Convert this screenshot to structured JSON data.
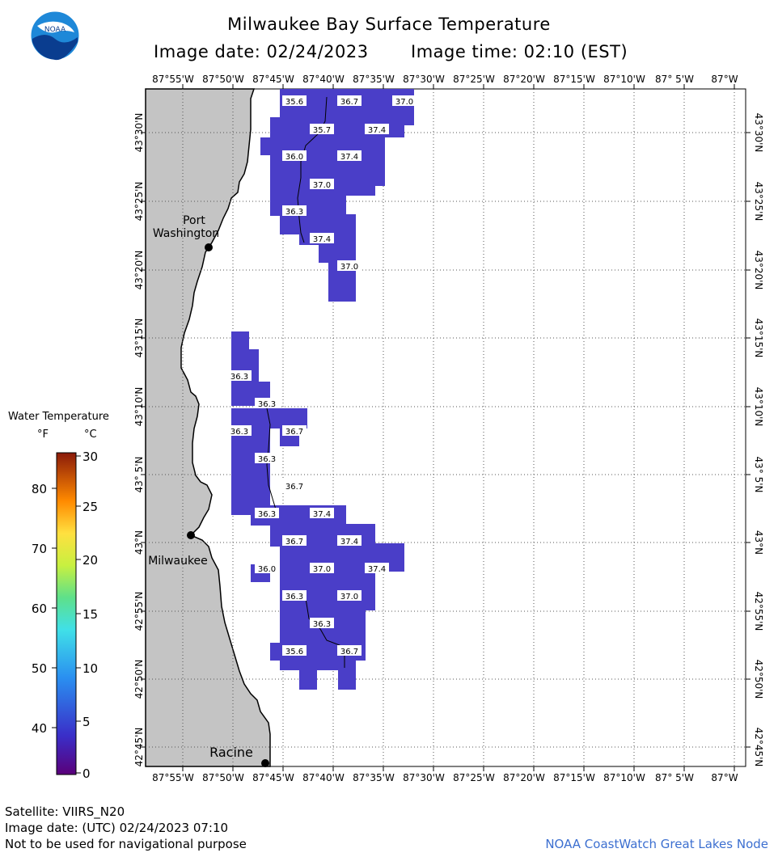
{
  "header": {
    "title": "Milwaukee Bay Surface Temperature",
    "image_date": "Image date: 02/24/2023",
    "image_time": "Image time: 02:10 (EST)",
    "logo_text": "NOAA"
  },
  "map": {
    "lon_labels": [
      "87°55'W",
      "87°50'W",
      "87°45'W",
      "87°40'W",
      "87°35'W",
      "87°30'W",
      "87°25'W",
      "87°20'W",
      "87°15'W",
      "87°10'W",
      "87° 5'W",
      "87°W"
    ],
    "lat_labels": [
      "43°30'N",
      "43°25'N",
      "43°20'N",
      "43°15'N",
      "43°10'N",
      "43° 5'N",
      "43°N",
      "42°55'N",
      "42°50'N",
      "42°45'N"
    ],
    "cities": [
      {
        "name": "Port",
        "name2": "Washington"
      },
      {
        "name": "Milwaukee"
      },
      {
        "name": "Racine"
      }
    ],
    "temperature_labels": [
      "35.6",
      "36.7",
      "37.0",
      "35.7",
      "37.4",
      "36.0",
      "37.4",
      "37.0",
      "36.3",
      "37.4",
      "37.0",
      "36.3",
      "36.3",
      "36.3",
      "36.7",
      "36.3",
      "36.7",
      "36.3",
      "37.4",
      "36.7",
      "37.4",
      "36.0",
      "37.0",
      "37.4",
      "36.3",
      "37.0",
      "36.3",
      "35.6",
      "36.7"
    ],
    "colors": {
      "water_fill": "#4a3ec8",
      "land": "#c4c4c4",
      "grid": "#555555"
    }
  },
  "legend": {
    "title": "Water Temperature",
    "unit_f": "°F",
    "unit_c": "°C",
    "f_ticks": [
      "80",
      "70",
      "60",
      "50",
      "40"
    ],
    "c_ticks": [
      "30",
      "25",
      "20",
      "15",
      "10",
      "5",
      "0"
    ]
  },
  "footer": {
    "satellite": "Satellite: VIIRS_N20",
    "image_date_utc": "Image date: (UTC) 02/24/2023  07:10",
    "disclaimer": "Not to be used for navigational purpose",
    "credit": "NOAA CoastWatch Great Lakes Node"
  }
}
